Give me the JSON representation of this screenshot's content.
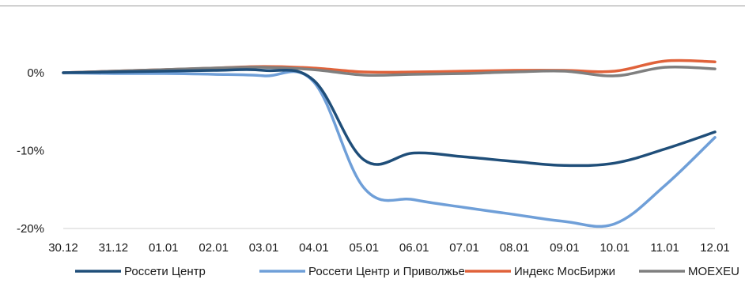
{
  "chart_data": {
    "type": "line",
    "title": "",
    "xlabel": "",
    "ylabel": "",
    "x": [
      "30.12",
      "31.12",
      "01.01",
      "02.01",
      "03.01",
      "04.01",
      "05.01",
      "06.01",
      "07.01",
      "08.01",
      "09.01",
      "10.01",
      "11.01",
      "12.01"
    ],
    "y_ticks": [
      0,
      -10,
      -20
    ],
    "y_tick_labels": [
      "0%",
      "-10%",
      "-20%"
    ],
    "ylim": [
      -20,
      3
    ],
    "grid": false,
    "legend_position": "bottom",
    "series": [
      {
        "name": "Россети Центр",
        "color": "#1f4e79",
        "values": [
          0,
          0.1,
          0.2,
          0.3,
          0.3,
          -1.0,
          -11.2,
          -10.3,
          -10.8,
          -11.4,
          -11.9,
          -11.6,
          -9.8,
          -7.6
        ]
      },
      {
        "name": "Россети Центр и Приволжье",
        "color": "#6f9fd8",
        "values": [
          0,
          -0.1,
          -0.1,
          -0.2,
          -0.4,
          -1.2,
          -14.8,
          -16.3,
          -17.3,
          -18.2,
          -19.1,
          -19.4,
          -14.5,
          -8.3
        ]
      },
      {
        "name": "Индекс МосБиржи",
        "color": "#e0623a",
        "values": [
          0,
          0.2,
          0.4,
          0.6,
          0.8,
          0.6,
          0.1,
          0.1,
          0.2,
          0.3,
          0.3,
          0.2,
          1.5,
          1.4
        ]
      },
      {
        "name": "MOEXEU",
        "color": "#7f7f7f",
        "values": [
          0,
          0.2,
          0.4,
          0.6,
          0.7,
          0.4,
          -0.3,
          -0.2,
          -0.1,
          0.1,
          0.2,
          -0.4,
          0.7,
          0.5
        ]
      }
    ]
  }
}
